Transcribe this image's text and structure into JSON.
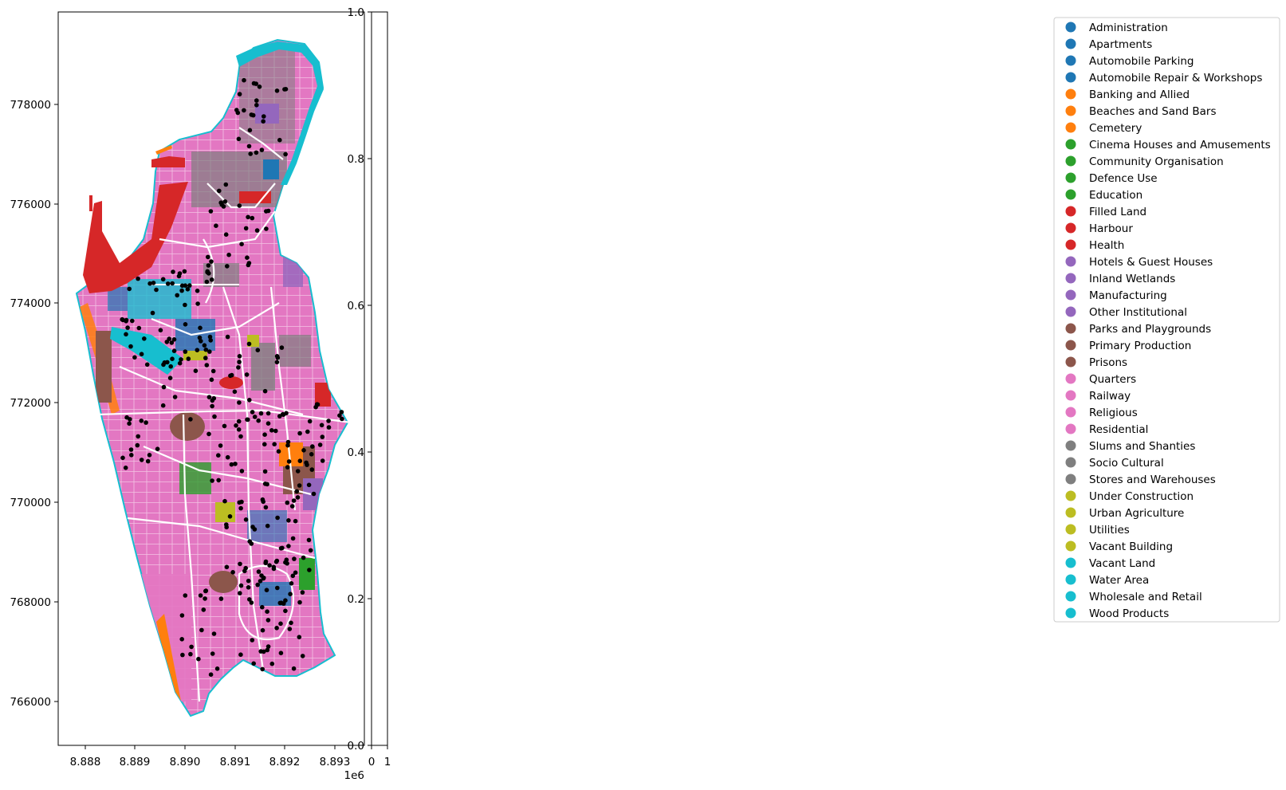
{
  "map": {
    "x_ticks": [
      {
        "value": 8888000,
        "label": "8.888"
      },
      {
        "value": 8889000,
        "label": "8.889"
      },
      {
        "value": 8890000,
        "label": "8.890"
      },
      {
        "value": 8891000,
        "label": "8.891"
      },
      {
        "value": 8892000,
        "label": "8.892"
      },
      {
        "value": 8893000,
        "label": "8.893"
      }
    ],
    "x_offset_label": "1e6",
    "y_ticks": [
      {
        "value": 766000,
        "label": "766000"
      },
      {
        "value": 768000,
        "label": "768000"
      },
      {
        "value": 770000,
        "label": "770000"
      },
      {
        "value": 772000,
        "label": "772000"
      },
      {
        "value": 774000,
        "label": "774000"
      },
      {
        "value": 776000,
        "label": "776000"
      },
      {
        "value": 778000,
        "label": "778000"
      }
    ],
    "xlim": [
      8887450,
      8893330
    ],
    "ylim": [
      765080,
      779830
    ]
  },
  "colorbar": {
    "y_ticks": [
      "0.0",
      "0.2",
      "0.4",
      "0.6",
      "0.8",
      "1.0"
    ],
    "x_ticks": [
      "0",
      "1"
    ]
  },
  "legend": {
    "items": [
      {
        "label": "Administration",
        "color": "#1f77b4"
      },
      {
        "label": "Apartments",
        "color": "#1f77b4"
      },
      {
        "label": "Automobile Parking",
        "color": "#1f77b4"
      },
      {
        "label": "Automobile Repair & Workshops",
        "color": "#1f77b4"
      },
      {
        "label": "Banking and Allied",
        "color": "#ff7f0e"
      },
      {
        "label": "Beaches and Sand Bars",
        "color": "#ff7f0e"
      },
      {
        "label": "Cemetery",
        "color": "#ff7f0e"
      },
      {
        "label": "Cinema Houses and Amusements",
        "color": "#2ca02c"
      },
      {
        "label": "Community Organisation",
        "color": "#2ca02c"
      },
      {
        "label": "Defence Use",
        "color": "#2ca02c"
      },
      {
        "label": "Education",
        "color": "#2ca02c"
      },
      {
        "label": "Filled Land",
        "color": "#d62728"
      },
      {
        "label": "Harbour",
        "color": "#d62728"
      },
      {
        "label": "Health",
        "color": "#d62728"
      },
      {
        "label": "Hotels & Guest Houses",
        "color": "#9467bd"
      },
      {
        "label": "Inland Wetlands",
        "color": "#9467bd"
      },
      {
        "label": "Manufacturing",
        "color": "#9467bd"
      },
      {
        "label": "Other Institutional",
        "color": "#9467bd"
      },
      {
        "label": "Parks and Playgrounds",
        "color": "#8c564b"
      },
      {
        "label": "Primary Production",
        "color": "#8c564b"
      },
      {
        "label": "Prisons",
        "color": "#8c564b"
      },
      {
        "label": "Quarters",
        "color": "#e377c2"
      },
      {
        "label": "Railway",
        "color": "#e377c2"
      },
      {
        "label": "Religious",
        "color": "#e377c2"
      },
      {
        "label": "Residential",
        "color": "#e377c2"
      },
      {
        "label": "Slums and Shanties",
        "color": "#7f7f7f"
      },
      {
        "label": "Socio Cultural",
        "color": "#7f7f7f"
      },
      {
        "label": "Stores and Warehouses",
        "color": "#7f7f7f"
      },
      {
        "label": "Under Construction",
        "color": "#bcbd22"
      },
      {
        "label": "Urban Agriculture",
        "color": "#bcbd22"
      },
      {
        "label": "Utilities",
        "color": "#bcbd22"
      },
      {
        "label": "Vacant Building",
        "color": "#bcbd22"
      },
      {
        "label": "Vacant Land",
        "color": "#17becf"
      },
      {
        "label": "Water Area",
        "color": "#17becf"
      },
      {
        "label": "Wholesale and Retail",
        "color": "#17becf"
      },
      {
        "label": "Wood Products",
        "color": "#17becf"
      }
    ]
  },
  "point_color": "#000000"
}
